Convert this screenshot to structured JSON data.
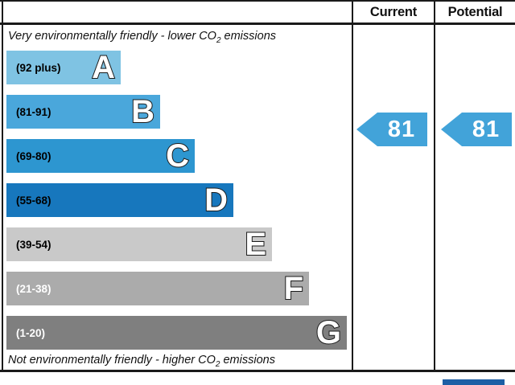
{
  "header": {
    "current_label": "Current",
    "potential_label": "Potential"
  },
  "captions": {
    "top": {
      "prefix": "Very environmentally friendly - lower CO",
      "sub": "2",
      "suffix": " emissions"
    },
    "bottom": {
      "prefix": "Not environmentally friendly - higher CO",
      "sub": "2",
      "suffix": " emissions"
    }
  },
  "colors": {
    "border": "#1a1a1a",
    "arrow_blue": "#42a3d9",
    "partial_blue_box": "#1d5fa5"
  },
  "chart_data": {
    "type": "bar",
    "categories": [
      "A",
      "B",
      "C",
      "D",
      "E",
      "F",
      "G"
    ],
    "bands": [
      {
        "letter": "A",
        "range_label": "(92 plus)",
        "min": 92,
        "max": 100,
        "color": "#7fc3e3",
        "text_color": "#000000"
      },
      {
        "letter": "B",
        "range_label": "(81-91)",
        "min": 81,
        "max": 91,
        "color": "#4aa7db",
        "text_color": "#000000"
      },
      {
        "letter": "C",
        "range_label": "(69-80)",
        "min": 69,
        "max": 80,
        "color": "#2d96d0",
        "text_color": "#000000"
      },
      {
        "letter": "D",
        "range_label": "(55-68)",
        "min": 55,
        "max": 68,
        "color": "#1777bd",
        "text_color": "#000000"
      },
      {
        "letter": "E",
        "range_label": "(39-54)",
        "min": 39,
        "max": 54,
        "color": "#c9c9c9",
        "text_color": "#000000"
      },
      {
        "letter": "F",
        "range_label": "(21-38)",
        "min": 21,
        "max": 38,
        "color": "#ababab",
        "text_color": "#ffffff"
      },
      {
        "letter": "G",
        "range_label": "(1-20)",
        "min": 1,
        "max": 20,
        "color": "#7f7f7f",
        "text_color": "#ffffff"
      }
    ],
    "current": {
      "value": "81",
      "color": "#42a3d9"
    },
    "potential": {
      "value": "81",
      "color": "#42a3d9"
    },
    "legend_position": "none",
    "grid": false
  }
}
